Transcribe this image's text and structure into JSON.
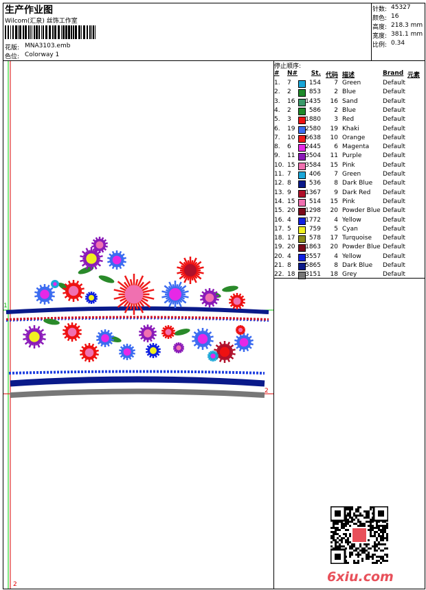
{
  "header": {
    "title": "生产作业图",
    "subtitle": "Wilcom(汇泉) 丝饰工作室",
    "design_label": "花版:",
    "design_value": "MNA3103.emb",
    "colorway_label": "色位:",
    "colorway_value": "Colorway 1",
    "stats": [
      {
        "label": "针数:",
        "value": "45327"
      },
      {
        "label": "颜色:",
        "value": "16"
      },
      {
        "label": "高度:",
        "value": "218.3 mm"
      },
      {
        "label": "宽度:",
        "value": "381.1 mm"
      },
      {
        "label": "比例:",
        "value": "0.34"
      }
    ]
  },
  "markers": [
    "1",
    "2",
    "2"
  ],
  "table": {
    "caption": "停止顺序:",
    "columns": [
      "#",
      "N#",
      "St.",
      "代码",
      "描述",
      "Brand",
      "元素"
    ],
    "rows": [
      {
        "index": "1.",
        "needle": "7",
        "color": "#1aa6d8",
        "stitches": "154",
        "code": "7",
        "description": "Green",
        "brand": "Default"
      },
      {
        "index": "2.",
        "needle": "2",
        "color": "#1e8a2a",
        "stitches": "853",
        "code": "2",
        "description": "Blue",
        "brand": "Default"
      },
      {
        "index": "3.",
        "needle": "16",
        "color": "#3a9a6a",
        "stitches": "1435",
        "code": "16",
        "description": "Sand",
        "brand": "Default"
      },
      {
        "index": "4.",
        "needle": "2",
        "color": "#1e8a2a",
        "stitches": "586",
        "code": "2",
        "description": "Blue",
        "brand": "Default"
      },
      {
        "index": "5.",
        "needle": "3",
        "color": "#ee1111",
        "stitches": "1880",
        "code": "3",
        "description": "Red",
        "brand": "Default"
      },
      {
        "index": "6.",
        "needle": "19",
        "color": "#3c6cf0",
        "stitches": "2580",
        "code": "19",
        "description": "Khaki",
        "brand": "Default"
      },
      {
        "index": "7.",
        "needle": "10",
        "color": "#ee1a1a",
        "stitches": "6638",
        "code": "10",
        "description": "Orange",
        "brand": "Default"
      },
      {
        "index": "8.",
        "needle": "6",
        "color": "#e628e6",
        "stitches": "2445",
        "code": "6",
        "description": "Magenta",
        "brand": "Default"
      },
      {
        "index": "9.",
        "needle": "11",
        "color": "#8a1ab8",
        "stitches": "3504",
        "code": "11",
        "description": "Purple",
        "brand": "Default"
      },
      {
        "index": "10.",
        "needle": "15",
        "color": "#f070b0",
        "stitches": "3584",
        "code": "15",
        "description": "Pink",
        "brand": "Default"
      },
      {
        "index": "11.",
        "needle": "7",
        "color": "#1aa6d8",
        "stitches": "406",
        "code": "7",
        "description": "Green",
        "brand": "Default"
      },
      {
        "index": "12.",
        "needle": "8",
        "color": "#0a1a8a",
        "stitches": "536",
        "code": "8",
        "description": "Dark Blue",
        "brand": "Default"
      },
      {
        "index": "13.",
        "needle": "9",
        "color": "#b0102a",
        "stitches": "1367",
        "code": "9",
        "description": "Dark Red",
        "brand": "Default"
      },
      {
        "index": "14.",
        "needle": "15",
        "color": "#f070b0",
        "stitches": "514",
        "code": "15",
        "description": "Pink",
        "brand": "Default"
      },
      {
        "index": "15.",
        "needle": "20",
        "color": "#7a0a1a",
        "stitches": "1298",
        "code": "20",
        "description": "Powder Blue",
        "brand": "Default"
      },
      {
        "index": "16.",
        "needle": "4",
        "color": "#1020e0",
        "stitches": "1772",
        "code": "4",
        "description": "Yellow",
        "brand": "Default"
      },
      {
        "index": "17.",
        "needle": "5",
        "color": "#f0f020",
        "stitches": "759",
        "code": "5",
        "description": "Cyan",
        "brand": "Default"
      },
      {
        "index": "18.",
        "needle": "17",
        "color": "#8a8a1a",
        "stitches": "578",
        "code": "17",
        "description": "Turquoise",
        "brand": "Default"
      },
      {
        "index": "19.",
        "needle": "20",
        "color": "#7a0a1a",
        "stitches": "1863",
        "code": "20",
        "description": "Powder Blue",
        "brand": "Default"
      },
      {
        "index": "20.",
        "needle": "4",
        "color": "#1020e0",
        "stitches": "3557",
        "code": "4",
        "description": "Yellow",
        "brand": "Default"
      },
      {
        "index": "21.",
        "needle": "8",
        "color": "#0a1a8a",
        "stitches": "5865",
        "code": "8",
        "description": "Dark Blue",
        "brand": "Default"
      },
      {
        "index": "22.",
        "needle": "18",
        "color": "#777777",
        "stitches": "3151",
        "code": "18",
        "description": "Grey",
        "brand": "Default"
      }
    ]
  },
  "watermark": "6xiu.com"
}
